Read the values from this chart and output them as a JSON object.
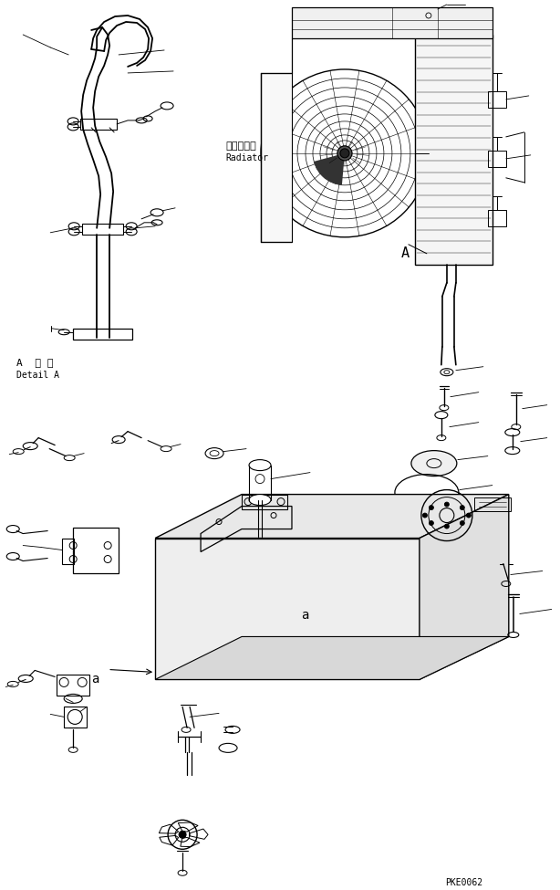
{
  "bg_color": "#ffffff",
  "line_color": "#000000",
  "radiator_label_jp": "ラジエータ",
  "radiator_label_en": "Radiator",
  "detail_label_jp": "A  詳 細",
  "detail_label_en": "Detail A",
  "label_A": "A",
  "label_a": "a",
  "watermark": "PKE0062",
  "fig_width": 6.14,
  "fig_height": 9.75,
  "dpi": 100
}
